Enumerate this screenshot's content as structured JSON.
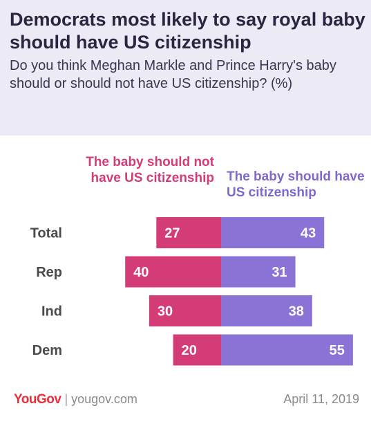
{
  "header": {
    "title": "Democrats most likely to say royal baby should have US citizenship",
    "subtitle": "Do you think Meghan Markle and Prince Harry's baby should or should not have US citizenship? (%)"
  },
  "footer": {
    "logo": "YouGov",
    "separator": "|",
    "site": "yougov.com",
    "date": "April 11, 2019"
  },
  "colors": {
    "negative": "#d43c78",
    "positive": "#8a72d6",
    "header_bg": "#eceaf4"
  },
  "chart_data": {
    "type": "bar",
    "orientation": "horizontal-diverging",
    "categories": [
      "Total",
      "Rep",
      "Ind",
      "Dem"
    ],
    "series": [
      {
        "name": "The baby should not have US citizenship",
        "values": [
          27,
          40,
          30,
          20
        ]
      },
      {
        "name": "The baby should have US citizenship",
        "values": [
          43,
          31,
          38,
          55
        ]
      }
    ],
    "unit": "%",
    "legend_placement": "top"
  }
}
